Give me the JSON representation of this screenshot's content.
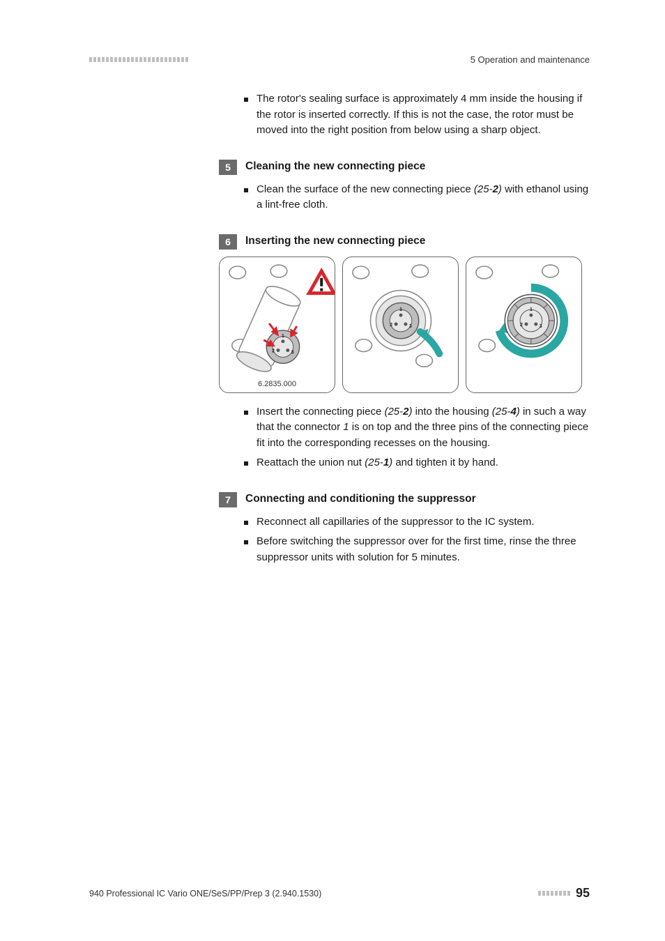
{
  "header": {
    "section_label": "5 Operation and maintenance",
    "left_dash_count": 24,
    "dash_color": "#bfbfbf"
  },
  "intro_bullet": "The rotor's sealing surface is approximately 4 mm inside the housing if the rotor is inserted correctly. If this is not the case, the rotor must be moved into the right position from below using a sharp object.",
  "steps": [
    {
      "num": "5",
      "title": "Cleaning the new connecting piece",
      "bullets": [
        {
          "pre": "Clean the surface of the new connecting piece ",
          "ref_a": "(25-",
          "ref_b": "2",
          "ref_c": ")",
          "post": " with ethanol using a lint-free cloth."
        }
      ]
    },
    {
      "num": "6",
      "title": "Inserting the new connecting piece",
      "figure_label": "6.2835.000",
      "bullets": [
        {
          "pre": "Insert the connecting piece ",
          "ref_a": "(25-",
          "ref_b": "2",
          "ref_c": ")",
          "mid": " into the housing ",
          "ref2_a": "(25-",
          "ref2_b": "4",
          "ref2_c": ")",
          "post": " in such a way that the connector ",
          "em1": "1",
          "post2": " is on top and the three pins of the connecting piece fit into the corresponding recesses on the housing."
        },
        {
          "pre": "Reattach the union nut ",
          "ref_a": "(25-",
          "ref_b": "1",
          "ref_c": ")",
          "post": " and tighten it by hand."
        }
      ]
    },
    {
      "num": "7",
      "title": "Connecting and conditioning the suppressor",
      "bullets_plain": [
        "Reconnect all capillaries of the suppressor to the IC system.",
        "Before switching the suppressor over for the first time, rinse the three suppressor units with solution for 5 minutes."
      ]
    }
  ],
  "figure": {
    "teal": "#2aa7a2",
    "teal_dark": "#1f8f8a",
    "red": "#d7262d",
    "grey_fill": "#bdbdbd",
    "grey_stroke": "#8a8a8a",
    "light_grey": "#e6e6e6",
    "dark_stroke": "#555555",
    "white": "#ffffff",
    "black": "#1a1a1a"
  },
  "footer": {
    "doc": "940 Professional IC Vario ONE/SeS/PP/Prep 3 (2.940.1530)",
    "right_dash_count": 8,
    "page": "95"
  }
}
